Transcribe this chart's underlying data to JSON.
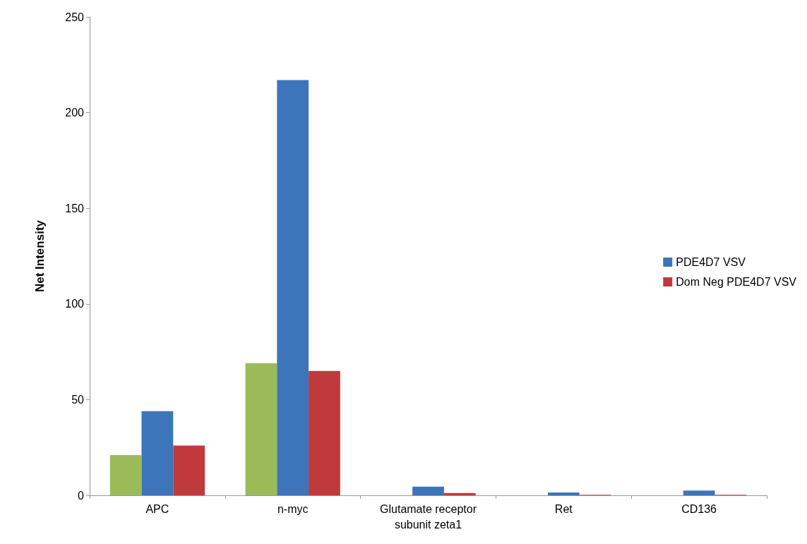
{
  "chart_data": {
    "type": "bar",
    "ylabel": "Net Intensity",
    "categories": [
      "APC",
      "n-myc",
      "Glutamate receptor\nsubunit zeta1",
      "Ret",
      "CD136"
    ],
    "series": [
      {
        "color": "#9bbb59",
        "values": [
          21,
          69,
          0,
          0,
          0
        ]
      },
      {
        "name": "PDE4D7 VSV",
        "color": "#3c75b9",
        "values": [
          44,
          217,
          4.5,
          1.5,
          2.5
        ]
      },
      {
        "name": "Dom Neg PDE4D7 VSV",
        "color": "#c0393b",
        "values": [
          26,
          65,
          1.2,
          0.3,
          0.3
        ]
      }
    ],
    "ylim": [
      0,
      250
    ],
    "yticks": [
      0,
      50,
      100,
      150,
      200,
      250
    ],
    "grid": false,
    "legend": "right"
  }
}
